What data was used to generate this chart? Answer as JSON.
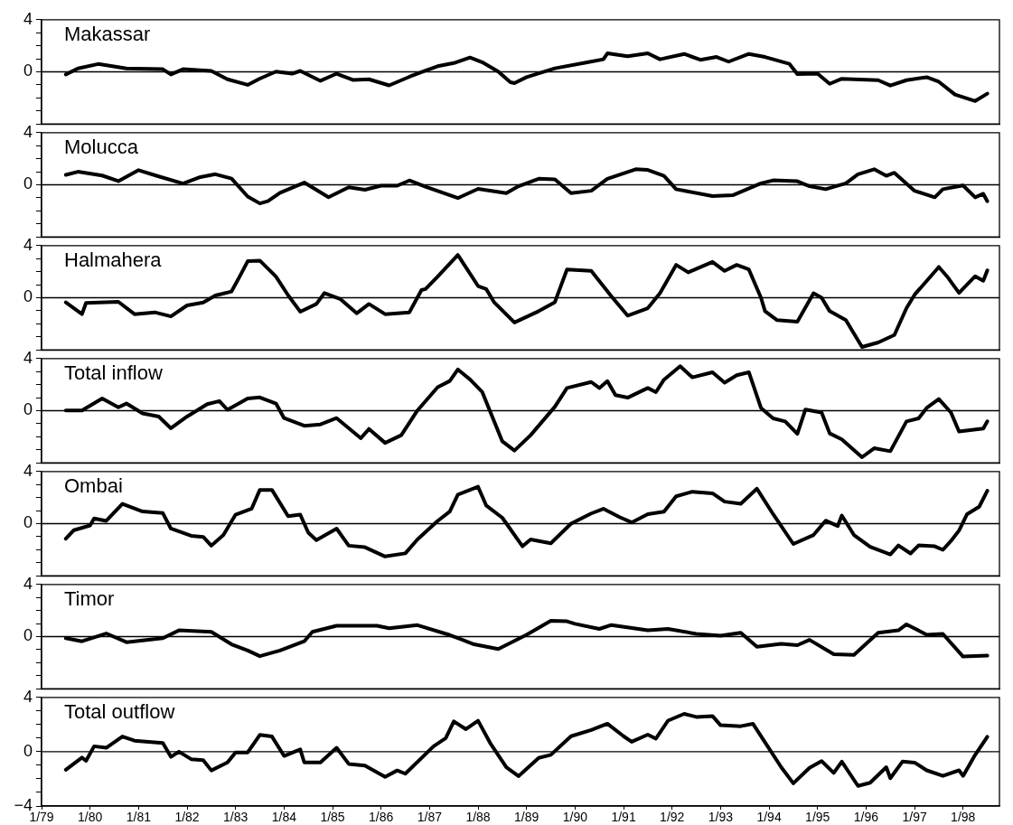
{
  "chart_data": [
    {
      "type": "line",
      "tick_labels": "y",
      "xlim": [
        "1979-01",
        "1998-10"
      ],
      "ylim": [
        -4,
        4
      ],
      "yticks": [
        {
          "value": -4,
          "label": null
        },
        {
          "value": -3,
          "label": null
        },
        {
          "value": -2,
          "label": null
        },
        {
          "value": -1,
          "label": null
        },
        {
          "value": 0,
          "label": "0"
        },
        {
          "value": 1,
          "label": null
        },
        {
          "value": 2,
          "label": null
        },
        {
          "value": 3,
          "label": null
        },
        {
          "value": 4,
          "label": "4"
        }
      ],
      "ref_lines": [
        {
          "axis": "y",
          "value": 0,
          "color": "#000000"
        }
      ],
      "series": [
        {
          "name": "Makassar",
          "color": "#000000",
          "x": [
            "1979-07",
            "1979-10",
            "1980-03",
            "1980-10",
            "1981-07",
            "1981-09",
            "1981-12",
            "1982-07",
            "1982-11",
            "1983-04",
            "1983-07",
            "1983-11",
            "1984-03",
            "1984-05",
            "1984-10",
            "1985-02",
            "1985-06",
            "1985-10",
            "1986-03",
            "1986-08",
            "1986-12",
            "1987-03",
            "1987-07",
            "1987-11",
            "1988-02",
            "1988-06",
            "1988-09",
            "1988-10",
            "1989-01",
            "1989-08",
            "1990-04",
            "1990-08",
            "1990-09",
            "1991-02",
            "1991-07",
            "1991-10",
            "1992-04",
            "1992-08",
            "1992-12",
            "1993-03",
            "1993-08",
            "1993-12",
            "1994-06",
            "1994-08",
            "1995-01",
            "1995-04",
            "1995-07",
            "1996-04",
            "1996-07",
            "1996-11",
            "1997-04",
            "1997-07",
            "1997-11",
            "1998-04",
            "1998-07"
          ],
          "values": [
            -0.2,
            0.26,
            0.6,
            0.26,
            0.2,
            -0.2,
            0.2,
            0.07,
            -0.57,
            -1.0,
            -0.52,
            0.02,
            -0.14,
            0.07,
            -0.69,
            -0.14,
            -0.62,
            -0.57,
            -1.04,
            -0.38,
            0.1,
            0.43,
            0.67,
            1.1,
            0.74,
            0.02,
            -0.8,
            -0.87,
            -0.41,
            0.27,
            0.73,
            0.96,
            1.42,
            1.19,
            1.42,
            0.96,
            1.37,
            0.92,
            1.14,
            0.78,
            1.37,
            1.14,
            0.62,
            -0.18,
            -0.14,
            -0.92,
            -0.53,
            -0.64,
            -1.05,
            -0.64,
            -0.41,
            -0.76,
            -1.74,
            -2.24,
            -1.67
          ]
        }
      ]
    },
    {
      "type": "line",
      "tick_labels": "y",
      "xlim": [
        "1979-01",
        "1998-10"
      ],
      "ylim": [
        -4,
        4
      ],
      "yticks": [
        {
          "value": -4,
          "label": null
        },
        {
          "value": -3,
          "label": null
        },
        {
          "value": -2,
          "label": null
        },
        {
          "value": -1,
          "label": null
        },
        {
          "value": 0,
          "label": "0"
        },
        {
          "value": 1,
          "label": null
        },
        {
          "value": 2,
          "label": null
        },
        {
          "value": 3,
          "label": null
        },
        {
          "value": 4,
          "label": "4"
        }
      ],
      "ref_lines": [
        {
          "axis": "y",
          "value": 0,
          "color": "#000000"
        }
      ],
      "series": [
        {
          "name": "Molucca",
          "color": "#000000",
          "x": [
            "1979-07",
            "1979-10",
            "1980-04",
            "1980-08",
            "1981-01",
            "1981-06",
            "1981-12",
            "1982-04",
            "1982-08",
            "1982-12",
            "1983-04",
            "1983-07",
            "1983-09",
            "1983-12",
            "1984-06",
            "1984-12",
            "1985-05",
            "1985-09",
            "1986-01",
            "1986-05",
            "1986-08",
            "1986-12",
            "1987-08",
            "1988-01",
            "1988-08",
            "1988-11",
            "1989-04",
            "1989-08",
            "1989-12",
            "1990-05",
            "1990-09",
            "1991-04",
            "1991-07",
            "1991-11",
            "1992-02",
            "1992-11",
            "1993-04",
            "1993-11",
            "1994-02",
            "1994-08",
            "1994-11",
            "1995-03",
            "1995-08",
            "1995-11",
            "1996-03",
            "1996-06",
            "1996-08",
            "1997-01",
            "1997-06",
            "1997-08",
            "1998-01",
            "1998-04",
            "1998-06",
            "1998-07"
          ],
          "values": [
            0.76,
            1.0,
            0.71,
            0.28,
            1.12,
            0.64,
            0.1,
            0.57,
            0.81,
            0.48,
            -0.9,
            -1.43,
            -1.26,
            -0.62,
            0.17,
            -0.95,
            -0.19,
            -0.38,
            -0.07,
            -0.07,
            0.33,
            -0.14,
            -1.02,
            -0.31,
            -0.64,
            -0.11,
            0.46,
            0.41,
            -0.64,
            -0.46,
            0.46,
            1.19,
            1.14,
            0.69,
            -0.34,
            -0.87,
            -0.8,
            0.11,
            0.34,
            0.27,
            -0.11,
            -0.34,
            0.11,
            0.8,
            1.19,
            0.69,
            0.92,
            -0.46,
            -0.96,
            -0.34,
            -0.05,
            -0.96,
            -0.69,
            -1.26
          ]
        }
      ]
    },
    {
      "type": "line",
      "tick_labels": "y",
      "xlim": [
        "1979-01",
        "1998-10"
      ],
      "ylim": [
        -4,
        4
      ],
      "yticks": [
        {
          "value": -4,
          "label": null
        },
        {
          "value": -3,
          "label": null
        },
        {
          "value": -2,
          "label": null
        },
        {
          "value": -1,
          "label": null
        },
        {
          "value": 0,
          "label": "0"
        },
        {
          "value": 1,
          "label": null
        },
        {
          "value": 2,
          "label": null
        },
        {
          "value": 3,
          "label": null
        },
        {
          "value": 4,
          "label": "4"
        }
      ],
      "ref_lines": [
        {
          "axis": "y",
          "value": 0,
          "color": "#000000"
        }
      ],
      "series": [
        {
          "name": "Halmahera",
          "color": "#000000",
          "x": [
            "1979-07",
            "1979-11",
            "1979-12",
            "1980-08",
            "1980-12",
            "1981-05",
            "1981-09",
            "1982-01",
            "1982-05",
            "1982-08",
            "1982-12",
            "1983-02",
            "1983-04",
            "1983-07",
            "1983-11",
            "1984-02",
            "1984-05",
            "1984-09",
            "1984-11",
            "1985-03",
            "1985-07",
            "1985-10",
            "1986-02",
            "1986-08",
            "1986-11",
            "1986-12",
            "1987-03",
            "1987-08",
            "1988-01",
            "1988-03",
            "1988-05",
            "1988-10",
            "1989-04",
            "1989-08",
            "1989-11",
            "1990-05",
            "1990-10",
            "1991-02",
            "1991-07",
            "1991-10",
            "1992-02",
            "1992-05",
            "1992-11",
            "1993-02",
            "1993-05",
            "1993-08",
            "1993-11",
            "1993-12",
            "1994-03",
            "1994-08",
            "1994-12",
            "1995-02",
            "1995-04",
            "1995-08",
            "1995-12",
            "1996-04",
            "1996-08",
            "1996-11",
            "1997-01",
            "1997-03",
            "1997-07",
            "1997-09",
            "1997-12",
            "1998-04",
            "1998-06",
            "1998-07"
          ],
          "values": [
            -0.36,
            -1.26,
            -0.4,
            -0.31,
            -1.26,
            -1.12,
            -1.43,
            -0.59,
            -0.36,
            0.17,
            0.48,
            1.62,
            2.8,
            2.85,
            1.62,
            0.19,
            -1.07,
            -0.48,
            0.36,
            -0.12,
            -1.19,
            -0.48,
            -1.26,
            -1.12,
            0.59,
            0.67,
            1.62,
            3.28,
            0.9,
            0.67,
            -0.36,
            -1.9,
            -1.03,
            -0.34,
            2.17,
            2.06,
            0.11,
            -1.37,
            -0.8,
            0.34,
            2.52,
            1.95,
            2.75,
            2.06,
            2.52,
            2.17,
            0,
            -1.03,
            -1.72,
            -1.83,
            0.34,
            0,
            -1.03,
            -1.72,
            -3.78,
            -3.43,
            -2.86,
            -0.8,
            0.23,
            0.94,
            2.36,
            1.65,
            0.37,
            1.65,
            1.3,
            2.1
          ]
        }
      ]
    },
    {
      "type": "line",
      "tick_labels": "y",
      "xlim": [
        "1979-01",
        "1998-10"
      ],
      "ylim": [
        -4,
        4
      ],
      "yticks": [
        {
          "value": -4,
          "label": null
        },
        {
          "value": -3,
          "label": null
        },
        {
          "value": -2,
          "label": null
        },
        {
          "value": -1,
          "label": null
        },
        {
          "value": 0,
          "label": "0"
        },
        {
          "value": 1,
          "label": null
        },
        {
          "value": 2,
          "label": null
        },
        {
          "value": 3,
          "label": null
        },
        {
          "value": 4,
          "label": "4"
        }
      ],
      "ref_lines": [
        {
          "axis": "y",
          "value": 0,
          "color": "#000000"
        }
      ],
      "series": [
        {
          "name": "Total inflow",
          "color": "#000000",
          "x": [
            "1979-07",
            "1979-11",
            "1980-04",
            "1980-08",
            "1980-10",
            "1981-02",
            "1981-06",
            "1981-09",
            "1982-01",
            "1982-06",
            "1982-09",
            "1982-11",
            "1983-04",
            "1983-07",
            "1983-11",
            "1984-01",
            "1984-06",
            "1984-10",
            "1985-02",
            "1985-08",
            "1985-10",
            "1986-02",
            "1986-06",
            "1986-10",
            "1987-03",
            "1987-06",
            "1987-08",
            "1987-11",
            "1988-02",
            "1988-07",
            "1988-10",
            "1989-02",
            "1989-08",
            "1989-11",
            "1990-05",
            "1990-07",
            "1990-09",
            "1990-11",
            "1991-02",
            "1991-07",
            "1991-09",
            "1991-11",
            "1992-03",
            "1992-06",
            "1992-11",
            "1993-02",
            "1993-05",
            "1993-08",
            "1993-11",
            "1994-02",
            "1994-05",
            "1994-08",
            "1994-10",
            "1995-02",
            "1995-04",
            "1995-07",
            "1995-12",
            "1996-03",
            "1996-07",
            "1996-11",
            "1997-02",
            "1997-04",
            "1997-07",
            "1997-10",
            "1997-12",
            "1998-06",
            "1998-07"
          ],
          "values": [
            0.02,
            0.02,
            0.93,
            0.26,
            0.55,
            -0.21,
            -0.45,
            -1.35,
            -0.45,
            0.5,
            0.74,
            0.07,
            0.93,
            1.02,
            0.55,
            -0.57,
            -1.16,
            -1.05,
            -0.57,
            -2.11,
            -1.4,
            -2.47,
            -1.88,
            0.02,
            1.8,
            2.28,
            3.16,
            2.4,
            1.45,
            -2.35,
            -3.06,
            -1.88,
            0.3,
            1.74,
            2.2,
            1.74,
            2.27,
            1.19,
            1.0,
            1.74,
            1.42,
            2.38,
            3.41,
            2.56,
            2.95,
            2.15,
            2.72,
            2.95,
            0.21,
            -0.59,
            -0.82,
            -1.78,
            0.09,
            -0.14,
            -1.74,
            -2.2,
            -3.57,
            -2.88,
            -3.11,
            -0.82,
            -0.59,
            0.21,
            0.89,
            -0.14,
            -1.6,
            -1.37,
            -0.82
          ]
        }
      ]
    },
    {
      "type": "line",
      "tick_labels": "y",
      "xlim": [
        "1979-01",
        "1998-10"
      ],
      "ylim": [
        -4,
        4
      ],
      "yticks": [
        {
          "value": -4,
          "label": null
        },
        {
          "value": -3,
          "label": null
        },
        {
          "value": -2,
          "label": null
        },
        {
          "value": -1,
          "label": null
        },
        {
          "value": 0,
          "label": "0"
        },
        {
          "value": 1,
          "label": null
        },
        {
          "value": 2,
          "label": null
        },
        {
          "value": 3,
          "label": null
        },
        {
          "value": 4,
          "label": "4"
        }
      ],
      "ref_lines": [
        {
          "axis": "y",
          "value": 0,
          "color": "#000000"
        }
      ],
      "series": [
        {
          "name": "Ombai",
          "color": "#000000",
          "x": [
            "1979-07",
            "1979-09",
            "1980-01",
            "1980-02",
            "1980-05",
            "1980-09",
            "1981-02",
            "1981-07",
            "1981-09",
            "1982-02",
            "1982-05",
            "1982-07",
            "1982-10",
            "1983-01",
            "1983-05",
            "1983-07",
            "1983-10",
            "1984-02",
            "1984-05",
            "1984-07",
            "1984-09",
            "1985-02",
            "1985-05",
            "1985-09",
            "1986-02",
            "1986-07",
            "1986-10",
            "1987-03",
            "1987-06",
            "1987-08",
            "1988-01",
            "1988-03",
            "1988-07",
            "1988-12",
            "1989-02",
            "1989-07",
            "1989-12",
            "1990-05",
            "1990-08",
            "1990-12",
            "1991-03",
            "1991-07",
            "1991-11",
            "1992-02",
            "1992-06",
            "1992-11",
            "1993-02",
            "1993-06",
            "1993-10",
            "1994-02",
            "1994-07",
            "1994-12",
            "1995-03",
            "1995-06",
            "1995-07",
            "1995-10",
            "1996-02",
            "1996-07",
            "1996-09",
            "1996-12",
            "1997-02",
            "1997-06",
            "1997-08",
            "1997-10",
            "1997-12",
            "1998-02",
            "1998-05",
            "1998-07"
          ],
          "values": [
            -1.16,
            -0.5,
            -0.14,
            0.4,
            0.21,
            1.52,
            0.93,
            0.81,
            -0.38,
            -0.93,
            -1.02,
            -1.69,
            -0.86,
            0.69,
            1.16,
            2.59,
            2.59,
            0.57,
            0.69,
            -0.69,
            -1.26,
            -0.38,
            -1.69,
            -1.81,
            -2.52,
            -2.28,
            -1.21,
            0.21,
            0.93,
            2.23,
            2.83,
            1.4,
            0.45,
            -1.74,
            -1.21,
            -1.51,
            0,
            0.78,
            1.14,
            0.5,
            0.09,
            0.73,
            0.92,
            2.1,
            2.45,
            2.33,
            1.69,
            1.53,
            2.68,
            0.73,
            -1.56,
            -0.87,
            0.23,
            -0.18,
            0.62,
            -0.87,
            -1.78,
            -2.36,
            -1.67,
            -2.29,
            -1.67,
            -1.74,
            -2.01,
            -1.33,
            -0.53,
            0.73,
            1.3,
            2.52
          ]
        }
      ]
    },
    {
      "type": "line",
      "tick_labels": "y",
      "xlim": [
        "1979-01",
        "1998-10"
      ],
      "ylim": [
        -4,
        4
      ],
      "yticks": [
        {
          "value": -4,
          "label": null
        },
        {
          "value": -3,
          "label": null
        },
        {
          "value": -2,
          "label": null
        },
        {
          "value": -1,
          "label": null
        },
        {
          "value": 0,
          "label": "0"
        },
        {
          "value": 1,
          "label": null
        },
        {
          "value": 2,
          "label": null
        },
        {
          "value": 3,
          "label": null
        },
        {
          "value": 4,
          "label": "4"
        }
      ],
      "ref_lines": [
        {
          "axis": "y",
          "value": 0,
          "color": "#000000"
        }
      ],
      "series": [
        {
          "name": "Timor",
          "color": "#000000",
          "x": [
            "1979-07",
            "1979-11",
            "1980-05",
            "1980-10",
            "1981-07",
            "1981-11",
            "1982-07",
            "1982-12",
            "1983-04",
            "1983-07",
            "1983-12",
            "1984-06",
            "1984-08",
            "1985-02",
            "1985-12",
            "1986-03",
            "1986-10",
            "1987-06",
            "1987-12",
            "1988-06",
            "1989-01",
            "1989-07",
            "1989-11",
            "1990-01",
            "1990-07",
            "1990-10",
            "1991-07",
            "1991-12",
            "1992-07",
            "1993-01",
            "1993-06",
            "1993-10",
            "1994-04",
            "1994-08",
            "1994-11",
            "1995-05",
            "1995-10",
            "1996-04",
            "1996-09",
            "1996-11",
            "1997-04",
            "1997-08",
            "1998-01",
            "1998-07"
          ],
          "values": [
            -0.12,
            -0.36,
            0.24,
            -0.43,
            -0.12,
            0.48,
            0.36,
            -0.59,
            -1.07,
            -1.5,
            -1.07,
            -0.36,
            0.36,
            0.83,
            0.83,
            0.64,
            0.88,
            0.12,
            -0.59,
            -0.95,
            0.14,
            1.21,
            1.17,
            0.98,
            0.59,
            0.89,
            0.48,
            0.59,
            0.21,
            0.07,
            0.3,
            -0.78,
            -0.55,
            -0.66,
            -0.25,
            -1.35,
            -1.4,
            0.3,
            0.48,
            0.94,
            0.14,
            0.21,
            -1.53,
            -1.46
          ]
        }
      ]
    },
    {
      "type": "line",
      "xlim": [
        "1979-01",
        "1998-10"
      ],
      "ylim": [
        -4,
        4
      ],
      "xticks": [
        {
          "value": "1979-01",
          "label": "1/79"
        },
        {
          "value": "1980-01",
          "label": "1/80"
        },
        {
          "value": "1981-01",
          "label": "1/81"
        },
        {
          "value": "1982-01",
          "label": "1/82"
        },
        {
          "value": "1983-01",
          "label": "1/83"
        },
        {
          "value": "1984-01",
          "label": "1/84"
        },
        {
          "value": "1985-01",
          "label": "1/85"
        },
        {
          "value": "1986-01",
          "label": "1/86"
        },
        {
          "value": "1987-01",
          "label": "1/87"
        },
        {
          "value": "1988-01",
          "label": "1/88"
        },
        {
          "value": "1989-01",
          "label": "1/89"
        },
        {
          "value": "1990-01",
          "label": "1/90"
        },
        {
          "value": "1991-01",
          "label": "1/91"
        },
        {
          "value": "1992-01",
          "label": "1/92"
        },
        {
          "value": "1993-01",
          "label": "1/93"
        },
        {
          "value": "1994-01",
          "label": "1/94"
        },
        {
          "value": "1995-01",
          "label": "1/95"
        },
        {
          "value": "1996-01",
          "label": "1/96"
        },
        {
          "value": "1997-01",
          "label": "1/97"
        },
        {
          "value": "1998-01",
          "label": "1/98"
        }
      ],
      "yticks": [
        {
          "value": -4,
          "label": "−4"
        },
        {
          "value": -3,
          "label": null
        },
        {
          "value": -2,
          "label": null
        },
        {
          "value": -1,
          "label": null
        },
        {
          "value": 0,
          "label": "0"
        },
        {
          "value": 1,
          "label": null
        },
        {
          "value": 2,
          "label": null
        },
        {
          "value": 3,
          "label": null
        },
        {
          "value": 4,
          "label": "4"
        }
      ],
      "ref_lines": [
        {
          "axis": "y",
          "value": 0,
          "color": "#000000"
        }
      ],
      "series": [
        {
          "name": "Total outflow",
          "color": "#000000",
          "x": [
            "1979-07",
            "1979-11",
            "1979-12",
            "1980-02",
            "1980-05",
            "1980-09",
            "1980-12",
            "1981-07",
            "1981-09",
            "1981-11",
            "1982-02",
            "1982-05",
            "1982-07",
            "1982-11",
            "1983-01",
            "1983-04",
            "1983-07",
            "1983-10",
            "1984-01",
            "1984-05",
            "1984-06",
            "1984-10",
            "1985-02",
            "1985-05",
            "1985-09",
            "1986-02",
            "1986-05",
            "1986-07",
            "1987-02",
            "1987-05",
            "1987-07",
            "1987-10",
            "1988-01",
            "1988-04",
            "1988-08",
            "1988-11",
            "1989-04",
            "1989-07",
            "1989-12",
            "1990-05",
            "1990-09",
            "1991-01",
            "1991-03",
            "1991-07",
            "1991-09",
            "1991-12",
            "1992-04",
            "1992-07",
            "1992-11",
            "1993-01",
            "1993-06",
            "1993-09",
            "1994-01",
            "1994-04",
            "1994-07",
            "1994-11",
            "1995-02",
            "1995-05",
            "1995-07",
            "1995-11",
            "1996-02",
            "1996-06",
            "1996-07",
            "1996-10",
            "1997-01",
            "1997-04",
            "1997-08",
            "1997-12",
            "1998-01",
            "1998-04",
            "1998-07"
          ],
          "values": [
            -1.33,
            -0.43,
            -0.67,
            0.4,
            0.29,
            1.12,
            0.81,
            0.64,
            -0.38,
            0,
            -0.55,
            -0.62,
            -1.38,
            -0.79,
            -0.05,
            -0.05,
            1.24,
            1.12,
            -0.31,
            0.17,
            -0.79,
            -0.79,
            0.29,
            -0.9,
            -1.02,
            -1.85,
            -1.38,
            -1.62,
            0.4,
            1.0,
            2.23,
            1.66,
            2.28,
            0.64,
            -1.14,
            -1.8,
            -0.46,
            -0.23,
            1.14,
            1.6,
            2.06,
            1.14,
            0.73,
            1.26,
            0.96,
            2.29,
            2.79,
            2.56,
            2.63,
            1.95,
            1.88,
            2.06,
            0.23,
            -1.14,
            -2.33,
            -1.19,
            -0.69,
            -1.56,
            -0.73,
            -2.52,
            -2.29,
            -1.14,
            -1.95,
            -0.73,
            -0.8,
            -1.37,
            -1.78,
            -1.37,
            -1.78,
            -0.23,
            1.1
          ]
        }
      ]
    }
  ]
}
